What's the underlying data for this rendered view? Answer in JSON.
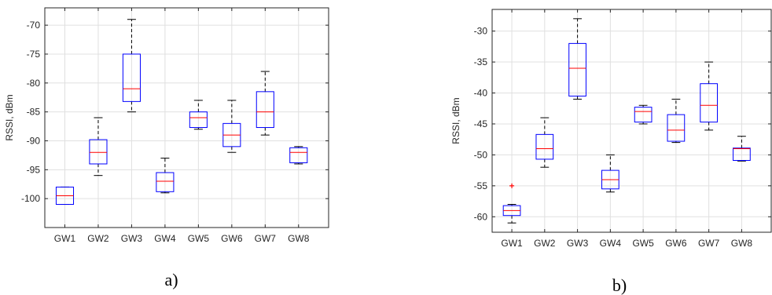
{
  "chart_data": [
    {
      "type": "boxplot",
      "panel_label": "a)",
      "ylabel": "RSSI, dBm",
      "xlabel": "",
      "ylim": [
        -105,
        -67
      ],
      "yticks": [
        -100,
        -95,
        -90,
        -85,
        -80,
        -75,
        -70
      ],
      "grid": true,
      "categories": [
        "GW1",
        "GW2",
        "GW3",
        "GW4",
        "GW5",
        "GW6",
        "GW7",
        "GW8"
      ],
      "boxes": [
        {
          "min": -101,
          "q1": -101,
          "median": -99.5,
          "q3": -98,
          "max": -98,
          "outliers": []
        },
        {
          "min": -96,
          "q1": -94,
          "median": -92,
          "q3": -89.8,
          "max": -86,
          "outliers": []
        },
        {
          "min": -85,
          "q1": -83.2,
          "median": -81,
          "q3": -75,
          "max": -69,
          "outliers": []
        },
        {
          "min": -99,
          "q1": -98.8,
          "median": -97,
          "q3": -95.5,
          "max": -93,
          "outliers": []
        },
        {
          "min": -88,
          "q1": -87.7,
          "median": -86,
          "q3": -85,
          "max": -83,
          "outliers": []
        },
        {
          "min": -92,
          "q1": -91,
          "median": -89,
          "q3": -87,
          "max": -83,
          "outliers": []
        },
        {
          "min": -89,
          "q1": -87.7,
          "median": -85,
          "q3": -81.5,
          "max": -78,
          "outliers": []
        },
        {
          "min": -94,
          "q1": -93.8,
          "median": -92,
          "q3": -91.2,
          "max": -91,
          "outliers": []
        }
      ]
    },
    {
      "type": "boxplot",
      "panel_label": "b)",
      "ylabel": "RSSI, dBm",
      "xlabel": "",
      "ylim": [
        -62.5,
        -26.5
      ],
      "yticks": [
        -60,
        -55,
        -50,
        -45,
        -40,
        -35,
        -30
      ],
      "grid": true,
      "categories": [
        "GW1",
        "GW2",
        "GW3",
        "GW4",
        "GW5",
        "GW6",
        "GW7",
        "GW8"
      ],
      "boxes": [
        {
          "min": -61,
          "q1": -59.8,
          "median": -59,
          "q3": -58.2,
          "max": -58,
          "outliers": [
            -55
          ]
        },
        {
          "min": -52,
          "q1": -50.7,
          "median": -49,
          "q3": -46.7,
          "max": -44,
          "outliers": []
        },
        {
          "min": -41,
          "q1": -40.5,
          "median": -36,
          "q3": -32,
          "max": -28,
          "outliers": []
        },
        {
          "min": -56,
          "q1": -55.5,
          "median": -54,
          "q3": -52.5,
          "max": -50,
          "outliers": []
        },
        {
          "min": -45,
          "q1": -44.7,
          "median": -43,
          "q3": -42.3,
          "max": -42,
          "outliers": []
        },
        {
          "min": -48,
          "q1": -47.8,
          "median": -46,
          "q3": -43.5,
          "max": -41,
          "outliers": []
        },
        {
          "min": -46,
          "q1": -44.7,
          "median": -42,
          "q3": -38.5,
          "max": -35,
          "outliers": []
        },
        {
          "min": -51,
          "q1": -50.9,
          "median": -49,
          "q3": -48.9,
          "max": -47,
          "outliers": []
        }
      ]
    }
  ],
  "colors": {
    "box": "#0000ff",
    "median": "#ff0000",
    "whisker": "#000000",
    "outlier": "#ff0000",
    "grid": "#e0e0e0",
    "axes": "#262626"
  }
}
